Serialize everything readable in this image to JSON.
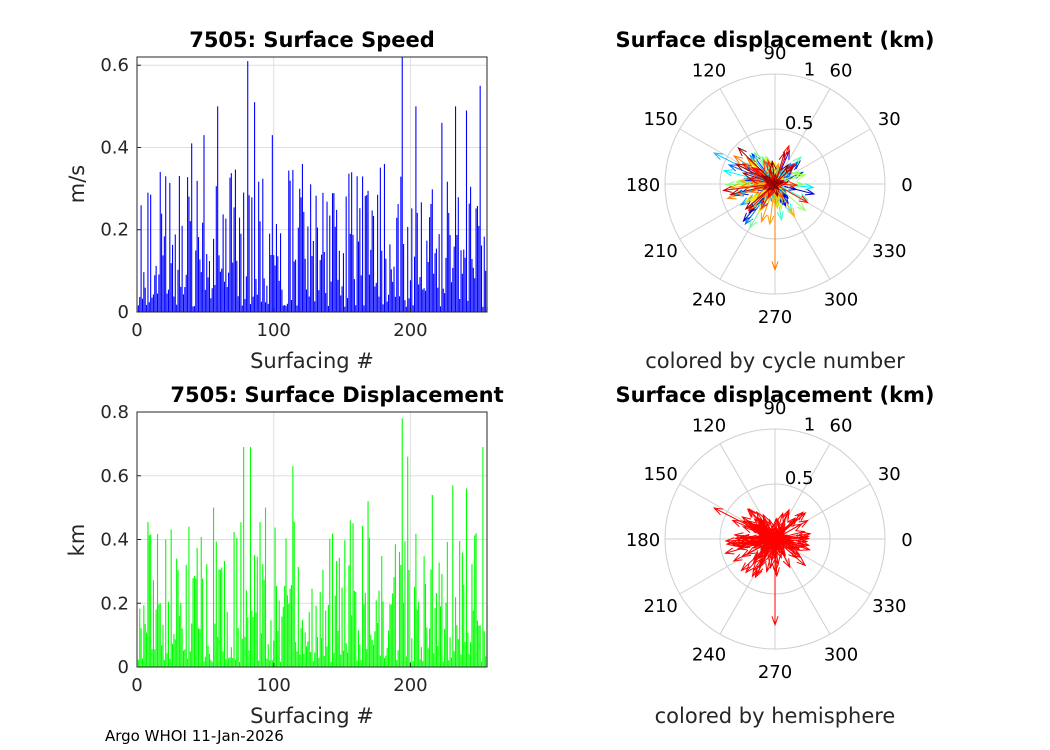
{
  "footer": "Argo WHOI 11-Jan-2026",
  "chart_data": [
    {
      "type": "bar",
      "title": "7505: Surface Speed",
      "xlabel": "Surfacing #",
      "ylabel": "m/s",
      "xlim": [
        0,
        256
      ],
      "ylim": [
        0,
        0.62
      ],
      "xticks": [
        "0",
        "100",
        "200"
      ],
      "yticks": [
        "0",
        "0.2",
        "0.4",
        "0.6"
      ],
      "color": "#0000ff",
      "n": 256,
      "peaks": [
        [
          20,
          0.33
        ],
        [
          39,
          0.41
        ],
        [
          48,
          0.43
        ],
        [
          58,
          0.5
        ],
        [
          80,
          0.61
        ],
        [
          85,
          0.51
        ],
        [
          98,
          0.43
        ],
        [
          120,
          0.36
        ],
        [
          160,
          0.33
        ],
        [
          180,
          0.36
        ],
        [
          193,
          0.62
        ],
        [
          203,
          0.5
        ],
        [
          222,
          0.46
        ],
        [
          232,
          0.5
        ],
        [
          240,
          0.49
        ],
        [
          250,
          0.55
        ]
      ]
    },
    {
      "type": "bar",
      "title": "7505: Surface Displacement",
      "xlabel": "Surfacing #",
      "ylabel": "km",
      "xlim": [
        0,
        256
      ],
      "ylim": [
        0,
        0.8
      ],
      "xticks": [
        "0",
        "100",
        "200"
      ],
      "yticks": [
        "0",
        "0.2",
        "0.4",
        "0.6",
        "0.8"
      ],
      "color": "#00ff00",
      "n": 256,
      "peaks": [
        [
          20,
          0.4
        ],
        [
          37,
          0.44
        ],
        [
          55,
          0.5
        ],
        [
          77,
          0.69
        ],
        [
          82,
          0.69
        ],
        [
          93,
          0.5
        ],
        [
          113,
          0.63
        ],
        [
          155,
          0.46
        ],
        [
          168,
          0.52
        ],
        [
          193,
          0.78
        ],
        [
          197,
          0.66
        ],
        [
          215,
          0.54
        ],
        [
          230,
          0.57
        ],
        [
          240,
          0.56
        ],
        [
          252,
          0.69
        ]
      ]
    },
    {
      "type": "polar",
      "title": "Surface displacement (km)",
      "caption": "colored by cycle number",
      "rmax": 1,
      "rticks": [
        "0.5",
        "1"
      ],
      "angle_labels": [
        "0",
        "30",
        "60",
        "90",
        "120",
        "150",
        "180",
        "210",
        "240",
        "270",
        "300",
        "330"
      ],
      "coloring": "cycle"
    },
    {
      "type": "polar",
      "title": "Surface displacement (km)",
      "caption": "colored by hemisphere",
      "rmax": 1,
      "rticks": [
        "0.5",
        "1"
      ],
      "angle_labels": [
        "0",
        "30",
        "60",
        "90",
        "120",
        "150",
        "180",
        "210",
        "240",
        "270",
        "300",
        "330"
      ],
      "coloring": "hemisphere",
      "color": "#ff0000"
    }
  ]
}
